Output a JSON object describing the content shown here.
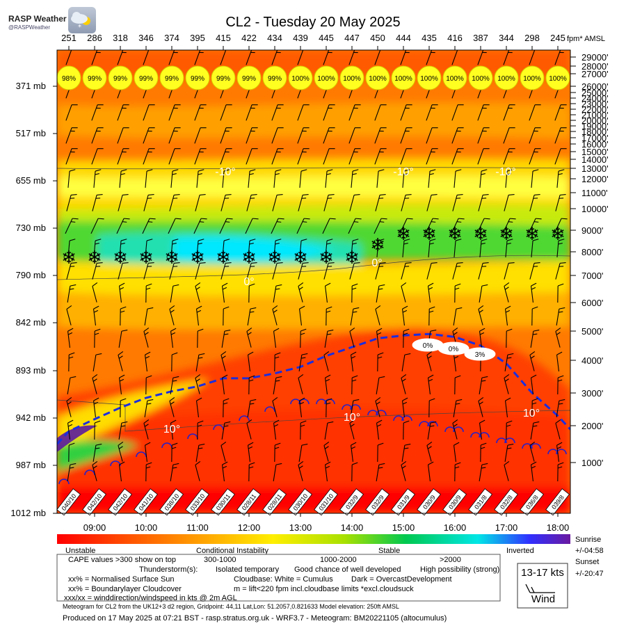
{
  "header": {
    "title": "CL2 - Tuesday 20 May 2025",
    "logo_text": "RASP Weather",
    "logo_handle": "@RASPWeather"
  },
  "top_axis": {
    "values": [
      "251",
      "286",
      "318",
      "346",
      "374",
      "395",
      "415",
      "422",
      "434",
      "439",
      "445",
      "447",
      "450",
      "444",
      "435",
      "416",
      "387",
      "344",
      "298",
      "245"
    ],
    "unit": "fpm* AMSL"
  },
  "chart_data": {
    "type": "heatmap",
    "title": "CL2 - Tuesday 20 May 2025",
    "x_ticks": [
      "09:00",
      "10:00",
      "11:00",
      "12:00",
      "13:00",
      "14:00",
      "15:00",
      "16:00",
      "17:00",
      "18:00"
    ],
    "x_range": [
      "08:30",
      "18:15"
    ],
    "left_axis": {
      "labels": [
        "371 mb",
        "517 mb",
        "655 mb",
        "730 mb",
        "790 mb",
        "842 mb",
        "893 mb",
        "942 mb",
        "987 mb",
        "1012 mb"
      ],
      "pressure_mb": [
        371,
        517,
        655,
        730,
        790,
        842,
        893,
        942,
        987,
        1012
      ]
    },
    "right_axis": {
      "labels": [
        "29000'",
        "28000'",
        "27000'",
        "26000'",
        "25000'",
        "24000'",
        "23000'",
        "22000'",
        "21000'",
        "20000'",
        "19000'",
        "18000'",
        "17000'",
        "16000'",
        "15000'",
        "14000'",
        "13000'",
        "12000'",
        "11000'",
        "10000'",
        "9000'",
        "8000'",
        "7000'",
        "6000'",
        "5000'",
        "4000'",
        "3000'",
        "2000'",
        "1000'"
      ],
      "altitude_ft": [
        29000,
        28000,
        27000,
        26000,
        25000,
        24000,
        23000,
        22000,
        21000,
        20000,
        19000,
        18000,
        17000,
        16000,
        15000,
        14000,
        13000,
        12000,
        11000,
        10000,
        9000,
        8000,
        7000,
        6000,
        5000,
        4000,
        3000,
        2000,
        1000
      ]
    },
    "high_cloud_cover_percent": [
      "98%",
      "99%",
      "99%",
      "99%",
      "99%",
      "99%",
      "99%",
      "99%",
      "99%",
      "100%",
      "100%",
      "100%",
      "100%",
      "100%",
      "100%",
      "100%",
      "100%",
      "100%",
      "100%",
      "100%"
    ],
    "surface_wind": [
      "040/10",
      "042/10",
      "042/10",
      "041/10",
      "038/10",
      "033/10",
      "030/11",
      "028/11",
      "028/11",
      "030/10",
      "031/10",
      "032/9",
      "032/9",
      "031/9",
      "030/9",
      "030/9",
      "031/8",
      "032/8",
      "036/8",
      "039/8"
    ],
    "lift_top_ft": [
      1850,
      2200,
      2550,
      2850,
      3050,
      3200,
      3450,
      3450,
      3600,
      3800,
      4150,
      4450,
      4750,
      4850,
      4900,
      4800,
      4500,
      3900,
      3000,
      2300
    ],
    "cumulus_cloudbase_labels": [
      "0%",
      "0%",
      "3%"
    ],
    "isotherms": [
      {
        "label": "-10°",
        "altitude_ft": 13000
      },
      {
        "label": "0°",
        "altitude_ft": 7800
      },
      {
        "label": "10°",
        "altitude_ft": 2300
      }
    ],
    "legend": {
      "scale_labels": [
        "Unstable",
        "Conditional Instability",
        "Stable",
        "Inverted"
      ],
      "colors": [
        "#ff0000",
        "#ff7f00",
        "#ffcc00",
        "#ffff00",
        "#a8e000",
        "#00cc55",
        "#00e8e0",
        "#3a3aff",
        "#6a1aa0"
      ]
    }
  },
  "legend_text": {
    "cape_line": "CAPE values >300 show on top",
    "cape_ranges": [
      "300-1000",
      "1000-2000",
      ">2000"
    ],
    "thunder_line": "Thunderstorm(s):",
    "thunder_levels": [
      "Isolated temporary",
      "Good chance of well developed",
      "High possibility (strong)"
    ],
    "sun_line": "xx% = Normalised Surface Sun",
    "cloudbase_line": "Cloudbase: White = Cumulus",
    "overcast_line": "Dark = OvercastDevelopment",
    "bl_cloud_line": "xx% = Boundarylayer Cloudcover",
    "lift_line": "m = lift<220 fpm incl.cloudbase limits *excl.cloudsuck",
    "wind_line": "xxx/xx = winddirection/windspeed in kts @ 2m AGL",
    "wind_box_speed": "13-17 kts",
    "wind_box_label": "Wind",
    "sunrise_label": "Sunrise",
    "sunrise_value": "+/-04:58",
    "sunset_label": "Sunset",
    "sunset_value": "+/-20:47"
  },
  "footer": {
    "meta": "Meteogram for CL2 from the UK12+3 d2 region, Gridpoint: 44,11 Lat,Lon: 51.2057,0.821633 Model elevation: 250ft AMSL",
    "produced": "Produced on 17 May 2025 at 07:21 BST - rasp.stratus.org.uk - WRF3.7 - Meteogram: BM20221105 (altocumulus)"
  }
}
